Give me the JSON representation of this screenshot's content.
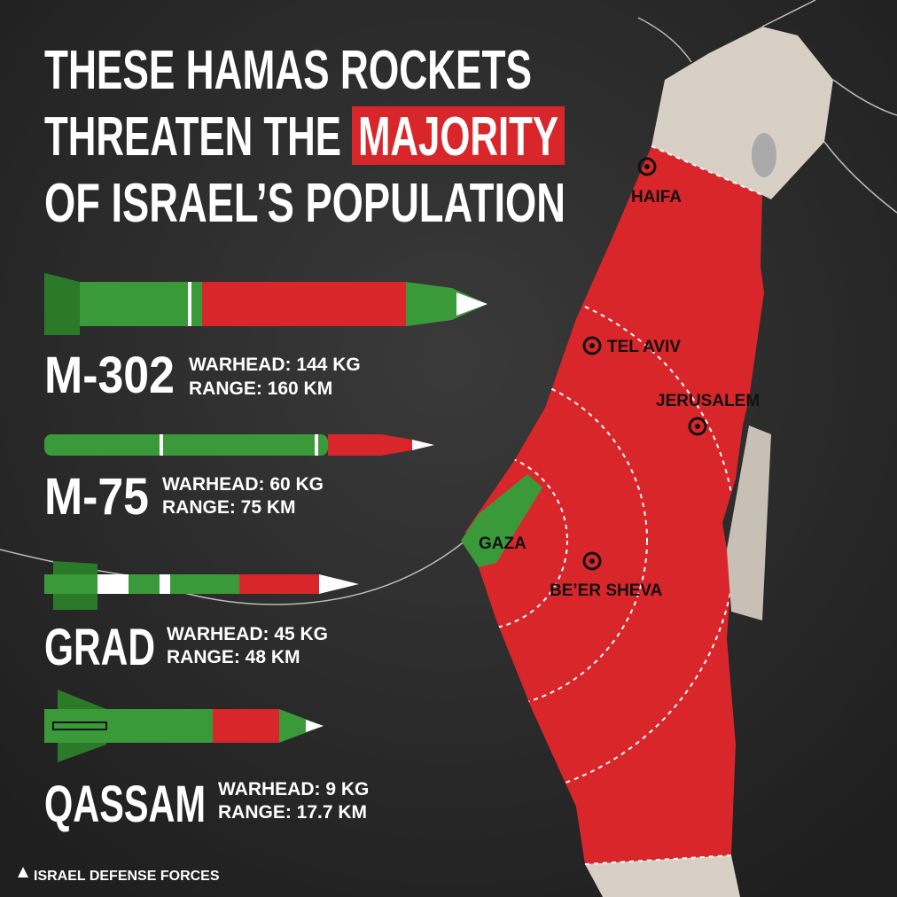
{
  "title": {
    "line1": "THESE HAMAS ROCKETS",
    "line2": "THREATEN THE",
    "highlight": "MAJORITY",
    "line3": "OF ISRAEL’S POPULATION"
  },
  "rockets": [
    {
      "name": "M-302",
      "warhead": "WARHEAD: 144 KG",
      "range": "RANGE: 160 KM"
    },
    {
      "name": "M-75",
      "warhead": "WARHEAD: 60 KG",
      "range": "RANGE: 75 KM"
    },
    {
      "name": "GRAD",
      "warhead": "WARHEAD: 45 KG",
      "range": "RANGE: 48 KM"
    },
    {
      "name": "QASSAM",
      "warhead": "WARHEAD: 9 KG",
      "range": "RANGE: 17.7 KM"
    }
  ],
  "map": {
    "cities": [
      "HAIFA",
      "TEL AVIV",
      "JERUSALEM",
      "BE’ER SHEVA"
    ],
    "region": "GAZA"
  },
  "footer": "ISRAEL DEFENSE FORCES"
}
